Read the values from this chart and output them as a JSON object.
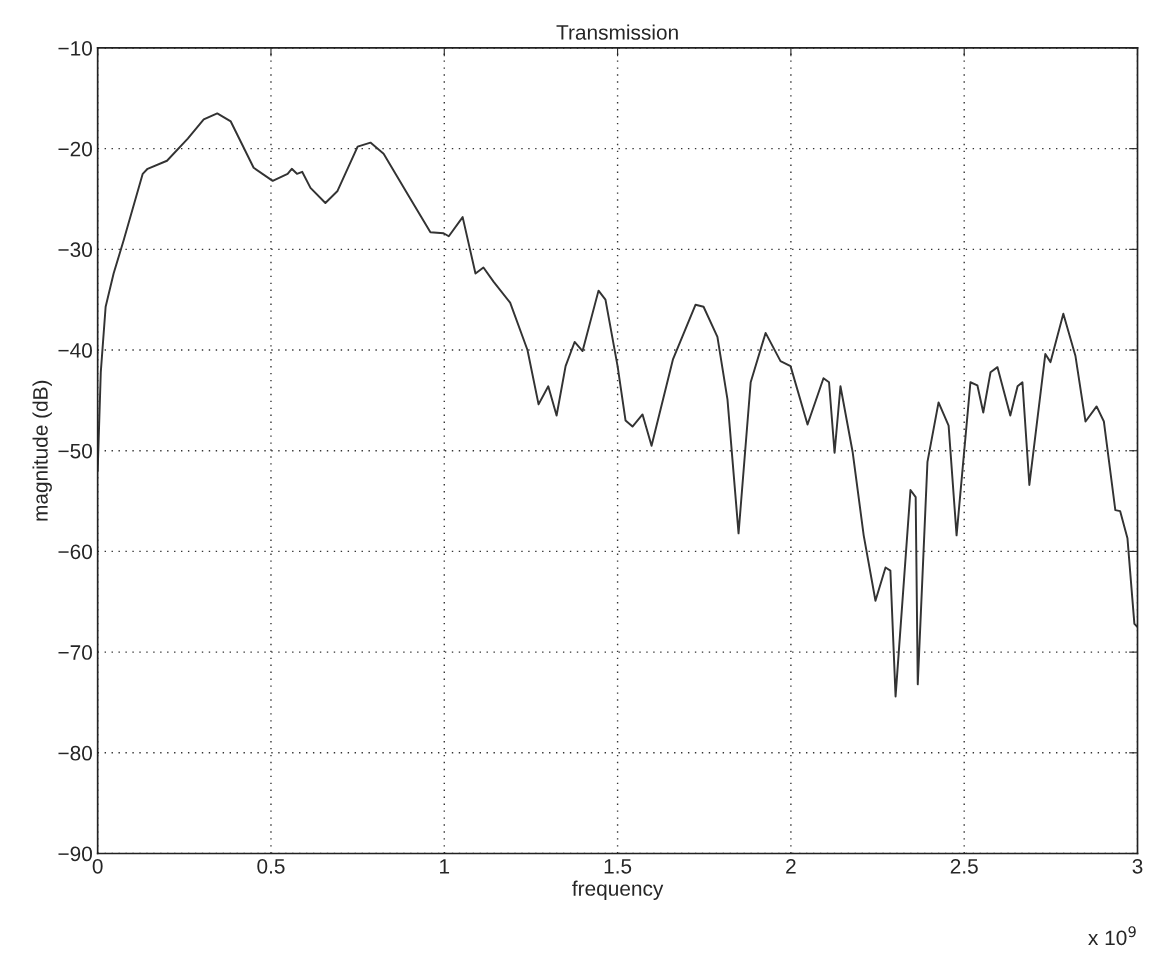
{
  "chart_data": {
    "type": "line",
    "title": "Transmission",
    "xlabel": "frequency",
    "ylabel": "magnitude (dB)",
    "annotations": [
      "x 10$^{9}$"
    ],
    "xlim": [
      0,
      3
    ],
    "ylim": [
      -90,
      -10
    ],
    "xticks": [
      0,
      0.5,
      1,
      1.5,
      2,
      2.5,
      3
    ],
    "yticks": [
      -90,
      -80,
      -70,
      -60,
      -50,
      -40,
      -30,
      -20,
      -10
    ],
    "grid": true,
    "line_style": "solid",
    "series": [
      {
        "color": "#333333",
        "x": [
          0,
          0.009,
          0.023,
          0.046,
          0.075,
          0.13,
          0.144,
          0.2,
          0.26,
          0.306,
          0.345,
          0.384,
          0.45,
          0.505,
          0.548,
          0.56,
          0.575,
          0.59,
          0.614,
          0.657,
          0.692,
          0.75,
          0.787,
          0.825,
          0.894,
          0.96,
          0.998,
          1.013,
          1.053,
          1.09,
          1.113,
          1.142,
          1.19,
          1.24,
          1.272,
          1.3,
          1.324,
          1.35,
          1.376,
          1.399,
          1.445,
          1.465,
          1.5,
          1.523,
          1.543,
          1.572,
          1.598,
          1.66,
          1.725,
          1.748,
          1.788,
          1.817,
          1.849,
          1.884,
          1.927,
          1.97,
          1.999,
          2.048,
          2.094,
          2.11,
          2.126,
          2.143,
          2.178,
          2.21,
          2.244,
          2.273,
          2.287,
          2.302,
          2.345,
          2.36,
          2.366,
          2.394,
          2.426,
          2.455,
          2.478,
          2.518,
          2.538,
          2.555,
          2.576,
          2.596,
          2.633,
          2.654,
          2.668,
          2.688,
          2.734,
          2.749,
          2.786,
          2.821,
          2.85,
          2.882,
          2.903,
          2.936,
          2.95,
          2.971,
          2.991,
          3
        ],
        "values": [
          -52,
          -42.2,
          -35.7,
          -32.4,
          -29.1,
          -22.5,
          -22,
          -21.2,
          -19,
          -17.1,
          -16.5,
          -17.3,
          -21.9,
          -23.2,
          -22.5,
          -22,
          -22.5,
          -22.3,
          -23.9,
          -25.4,
          -24.2,
          -19.8,
          -19.4,
          -20.5,
          -24.5,
          -28.3,
          -28.4,
          -28.7,
          -26.8,
          -32.4,
          -31.8,
          -33.2,
          -35.3,
          -40,
          -45.4,
          -43.6,
          -46.5,
          -41.6,
          -39.2,
          -40.1,
          -34.1,
          -35,
          -41.6,
          -47,
          -47.6,
          -46.4,
          -49.5,
          -40.9,
          -35.5,
          -35.7,
          -38.7,
          -44.9,
          -58.2,
          -43.2,
          -38.3,
          -41.1,
          -41.6,
          -47.4,
          -42.8,
          -43.2,
          -50.2,
          -43.6,
          -50.1,
          -58.4,
          -64.9,
          -61.6,
          -61.9,
          -74.4,
          -53.9,
          -54.6,
          -73.2,
          -51.1,
          -45.2,
          -47.5,
          -58.4,
          -43.2,
          -43.5,
          -46.2,
          -42.2,
          -41.7,
          -46.5,
          -43.6,
          -43.2,
          -53.4,
          -40.4,
          -41.2,
          -36.4,
          -40.6,
          -47.1,
          -45.6,
          -47.1,
          -55.9,
          -56,
          -58.7,
          -67.2,
          -67.5
        ]
      }
    ]
  }
}
